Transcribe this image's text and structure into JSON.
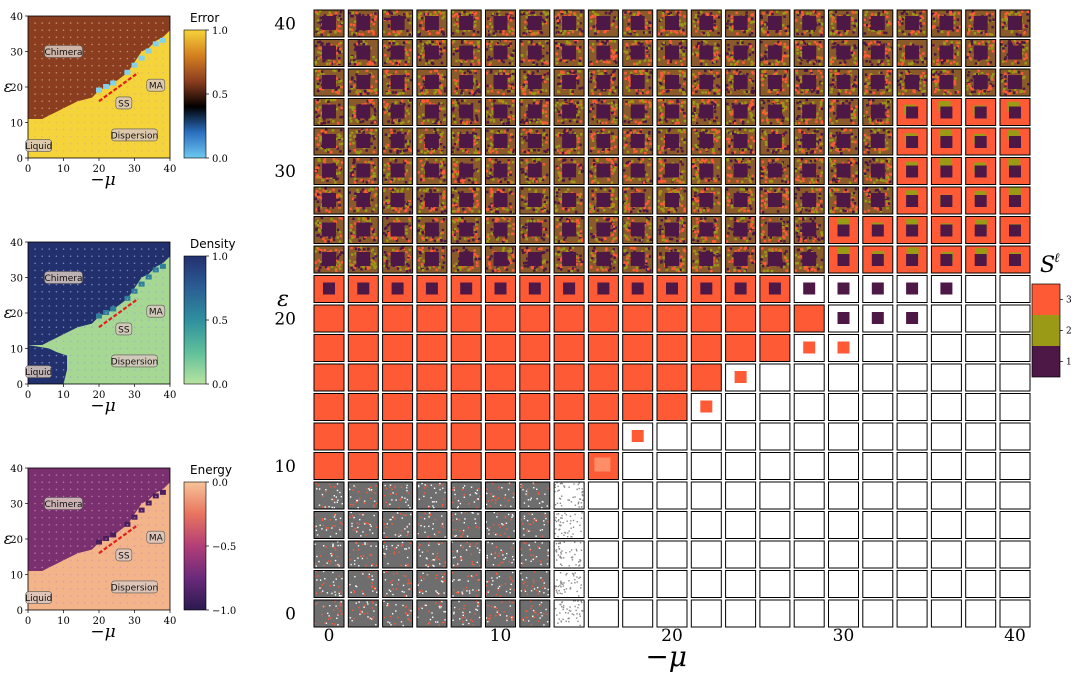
{
  "panels": [
    {
      "id": "error",
      "colorbar_title": "Error",
      "colorbar_ticks": [
        "1.0",
        "0.5",
        "0.0"
      ],
      "colors": {
        "chimera": "#8b3e1f",
        "liquid": "#f5d33a",
        "dispersion": "#f5d33a",
        "edge": "#7fd3f0",
        "dot": "#d9b08a"
      },
      "colormap": [
        "#6ec8f0",
        "#2a6fc0",
        "#000000",
        "#8b3e1f",
        "#d57f20",
        "#f5d33a"
      ]
    },
    {
      "id": "density",
      "colorbar_title": "Density",
      "colorbar_ticks": [
        "1.0",
        "0.5",
        "0.0"
      ],
      "colors": {
        "chimera": "#23306e",
        "liquid": "#23306e",
        "dispersion": "#a6d894",
        "edge": "#2f7f9a",
        "dot": "#9aa6d6"
      },
      "colormap": [
        "#b7e4a0",
        "#5fbf9a",
        "#2f8f9e",
        "#2b5e94",
        "#23306e"
      ]
    },
    {
      "id": "energy",
      "colorbar_title": "Energy",
      "colorbar_ticks": [
        "0.0",
        "−0.5",
        "−1.0"
      ],
      "colors": {
        "chimera": "#7a2f6e",
        "liquid": "#f3b48a",
        "dispersion": "#f3b48a",
        "edge": "#4b1f5e",
        "dot": "#d08fbf"
      },
      "colormap": [
        "#2a1a50",
        "#6a2a7a",
        "#b23e78",
        "#e8745e",
        "#f7c49a"
      ]
    }
  ],
  "region_labels": {
    "chimera": "Chimera",
    "liquid": "Liquid",
    "dispersion": "Dispersion",
    "ss": "SS",
    "ma": "MA"
  },
  "small_axes": {
    "x_ticks": [
      "0",
      "10",
      "20",
      "30",
      "40"
    ],
    "y_ticks": [
      "0",
      "10",
      "20",
      "30",
      "40"
    ],
    "xlabel": "−μ",
    "ylabel": "ε"
  },
  "main_axes": {
    "x_ticks": [
      "0",
      "10",
      "20",
      "30",
      "40"
    ],
    "y_ticks": [
      "0",
      "10",
      "20",
      "30",
      "40"
    ],
    "xlabel": "−μ",
    "ylabel": "ε"
  },
  "legend": {
    "title": "S",
    "title_sup": "ℓ",
    "entries": [
      {
        "label": "3",
        "color": "#ff5a36"
      },
      {
        "label": "2",
        "color": "#9a9a16"
      },
      {
        "label": "1",
        "color": "#4d1746"
      }
    ]
  },
  "chart_data": {
    "type": "heatmap",
    "title": "",
    "xlabel": "−μ",
    "ylabel": "ε",
    "xlim": [
      0,
      40
    ],
    "ylim": [
      0,
      40
    ],
    "grid_columns_mu": [
      0,
      2,
      4,
      6,
      8,
      10,
      12,
      14,
      16,
      18,
      20,
      22,
      24,
      26,
      28,
      30,
      32,
      34,
      36,
      38,
      40
    ],
    "grid_rows_eps": [
      40,
      38,
      36,
      34,
      32,
      30,
      28,
      26,
      24,
      22,
      20,
      18,
      16,
      14,
      12,
      10,
      8,
      6,
      4,
      2,
      0
    ],
    "legend": [
      "3",
      "2",
      "1"
    ],
    "regions": [
      "Chimera",
      "Liquid",
      "Dispersion",
      "SS",
      "MA"
    ],
    "colorbars": [
      {
        "name": "Error",
        "range": [
          0.0,
          1.0
        ]
      },
      {
        "name": "Density",
        "range": [
          0.0,
          1.0
        ]
      },
      {
        "name": "Energy",
        "range": [
          -1.0,
          0.0
        ]
      }
    ]
  }
}
